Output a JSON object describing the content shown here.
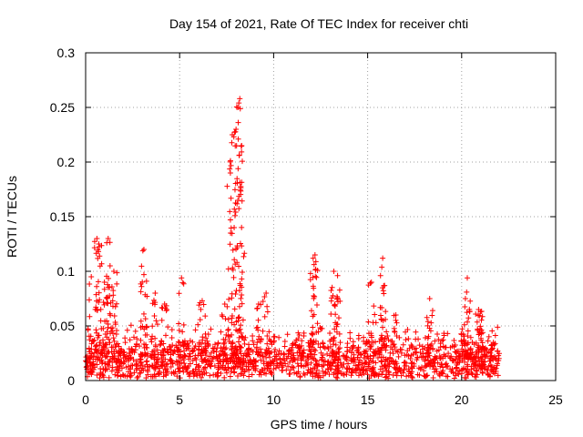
{
  "chart_data": {
    "type": "scatter",
    "title": "Day 154 of 2021, Rate Of TEC Index for receiver chti",
    "xlabel": "GPS time / hours",
    "ylabel": "ROTI / TECUs",
    "xlim": [
      0,
      25
    ],
    "ylim": [
      0,
      0.3
    ],
    "x_ticks": [
      "0",
      "5",
      "10",
      "15",
      "20",
      "25"
    ],
    "y_ticks": [
      "0",
      "0.05",
      "0.1",
      "0.15",
      "0.2",
      "0.25",
      "0.3"
    ],
    "grid": true,
    "marker": "+",
    "color": "#ff0000",
    "series": [
      {
        "name": "ROTI",
        "data_range_x": [
          0,
          22
        ],
        "baseline_range_y": [
          0.002,
          0.03
        ],
        "peaks": [
          {
            "x": 0.3,
            "y": 0.095
          },
          {
            "x": 0.6,
            "y": 0.13
          },
          {
            "x": 0.7,
            "y": 0.125
          },
          {
            "x": 1.2,
            "y": 0.13
          },
          {
            "x": 1.3,
            "y": 0.105
          },
          {
            "x": 1.5,
            "y": 0.1
          },
          {
            "x": 1.0,
            "y": 0.09
          },
          {
            "x": 3.1,
            "y": 0.12
          },
          {
            "x": 3.1,
            "y": 0.097
          },
          {
            "x": 3.7,
            "y": 0.08
          },
          {
            "x": 4.2,
            "y": 0.07
          },
          {
            "x": 5.1,
            "y": 0.094
          },
          {
            "x": 6.2,
            "y": 0.073
          },
          {
            "x": 7.4,
            "y": 0.07
          },
          {
            "x": 7.7,
            "y": 0.19
          },
          {
            "x": 7.8,
            "y": 0.225
          },
          {
            "x": 8.0,
            "y": 0.23
          },
          {
            "x": 8.1,
            "y": 0.25
          },
          {
            "x": 8.2,
            "y": 0.258
          },
          {
            "x": 8.3,
            "y": 0.215
          },
          {
            "x": 8.1,
            "y": 0.165
          },
          {
            "x": 7.9,
            "y": 0.14
          },
          {
            "x": 8.3,
            "y": 0.093
          },
          {
            "x": 9.2,
            "y": 0.07
          },
          {
            "x": 9.6,
            "y": 0.08
          },
          {
            "x": 12.1,
            "y": 0.112
          },
          {
            "x": 12.2,
            "y": 0.115
          },
          {
            "x": 13.2,
            "y": 0.1
          },
          {
            "x": 13.4,
            "y": 0.096
          },
          {
            "x": 15.2,
            "y": 0.09
          },
          {
            "x": 15.8,
            "y": 0.112
          },
          {
            "x": 15.9,
            "y": 0.087
          },
          {
            "x": 16.5,
            "y": 0.06
          },
          {
            "x": 18.3,
            "y": 0.075
          },
          {
            "x": 20.3,
            "y": 0.094
          },
          {
            "x": 20.2,
            "y": 0.075
          },
          {
            "x": 20.9,
            "y": 0.065
          },
          {
            "x": 21.0,
            "y": 0.063
          }
        ]
      }
    ]
  }
}
